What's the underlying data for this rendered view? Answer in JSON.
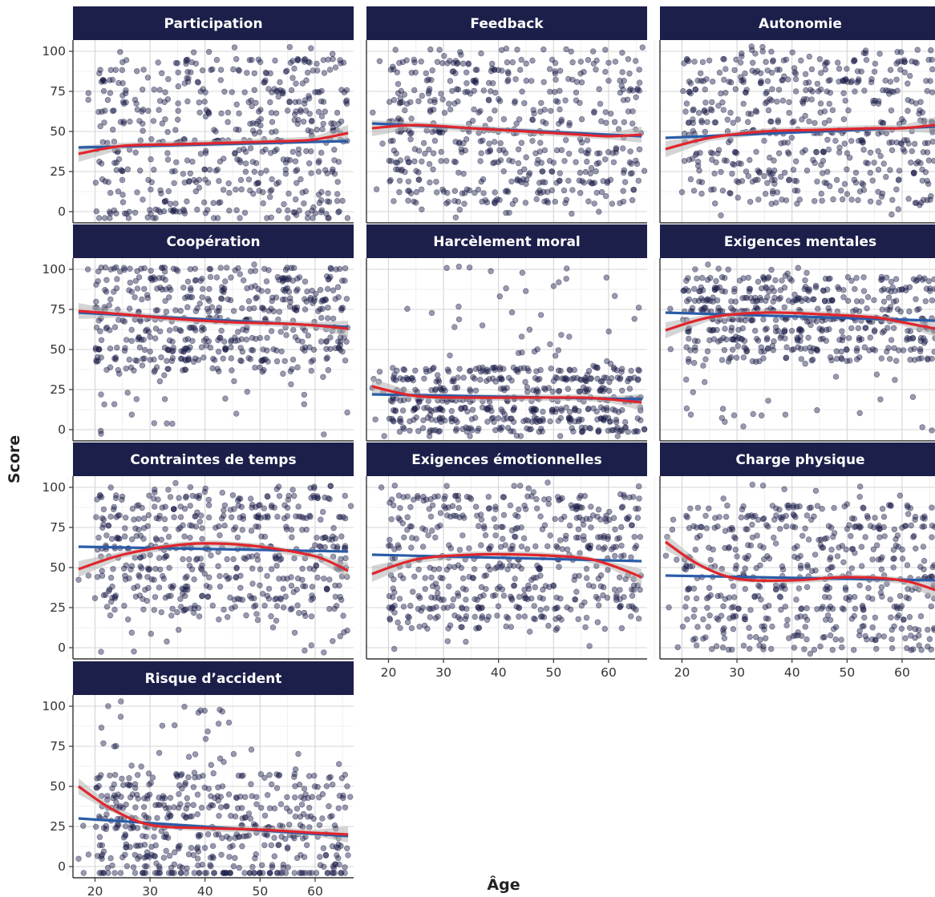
{
  "chart_data": {
    "type": "scatter",
    "xlabel": "Âge",
    "ylabel": "Score",
    "xlim": [
      16,
      67
    ],
    "ylim": [
      -7,
      107
    ],
    "x_ticks": [
      20,
      30,
      40,
      50,
      60
    ],
    "y_ticks": [
      0,
      25,
      50,
      75,
      100
    ],
    "grid": true,
    "colors": {
      "strip": "#1c1f4a",
      "points": "#1c1f4a",
      "linear": "#2a5ca8",
      "loess": "#e0262d",
      "band": "#b3b3b3"
    },
    "panels": [
      {
        "title": "Participation",
        "y_center": 45,
        "y_spread": 38,
        "linear": [
          [
            17,
            40
          ],
          [
            66,
            44
          ]
        ],
        "loess": [
          [
            17,
            36
          ],
          [
            25,
            41
          ],
          [
            35,
            42
          ],
          [
            45,
            43
          ],
          [
            55,
            44
          ],
          [
            60,
            45
          ],
          [
            66,
            49
          ]
        ]
      },
      {
        "title": "Feedback",
        "y_center": 50,
        "y_spread": 36,
        "linear": [
          [
            17,
            55
          ],
          [
            66,
            47
          ]
        ],
        "loess": [
          [
            17,
            52
          ],
          [
            25,
            54
          ],
          [
            35,
            52
          ],
          [
            45,
            50
          ],
          [
            55,
            48
          ],
          [
            60,
            47
          ],
          [
            66,
            48
          ]
        ]
      },
      {
        "title": "Autonomie",
        "y_center": 52,
        "y_spread": 36,
        "linear": [
          [
            17,
            46
          ],
          [
            66,
            53
          ]
        ],
        "loess": [
          [
            17,
            39
          ],
          [
            25,
            46
          ],
          [
            35,
            50
          ],
          [
            45,
            51
          ],
          [
            55,
            52
          ],
          [
            60,
            52
          ],
          [
            66,
            54
          ]
        ]
      },
      {
        "title": "Coopération",
        "y_center": 70,
        "y_spread": 24,
        "linear": [
          [
            17,
            73
          ],
          [
            66,
            64
          ]
        ],
        "loess": [
          [
            17,
            74
          ],
          [
            25,
            72
          ],
          [
            35,
            69
          ],
          [
            45,
            67
          ],
          [
            55,
            66
          ],
          [
            60,
            65
          ],
          [
            66,
            63
          ]
        ]
      },
      {
        "title": "Harcèlement moral",
        "y_center": 18,
        "y_spread": 16,
        "linear": [
          [
            17,
            22
          ],
          [
            66,
            19
          ]
        ],
        "loess": [
          [
            17,
            27
          ],
          [
            25,
            21
          ],
          [
            35,
            20
          ],
          [
            45,
            20
          ],
          [
            55,
            20
          ],
          [
            60,
            19
          ],
          [
            66,
            17
          ]
        ]
      },
      {
        "title": "Exigences mentales",
        "y_center": 70,
        "y_spread": 20,
        "linear": [
          [
            17,
            73
          ],
          [
            66,
            68
          ]
        ],
        "loess": [
          [
            17,
            62
          ],
          [
            25,
            70
          ],
          [
            35,
            73
          ],
          [
            45,
            72
          ],
          [
            55,
            70
          ],
          [
            60,
            67
          ],
          [
            66,
            63
          ]
        ]
      },
      {
        "title": "Contraintes de temps",
        "y_center": 60,
        "y_spread": 30,
        "linear": [
          [
            17,
            63
          ],
          [
            66,
            60
          ]
        ],
        "loess": [
          [
            17,
            49
          ],
          [
            25,
            58
          ],
          [
            35,
            64
          ],
          [
            42,
            65
          ],
          [
            50,
            63
          ],
          [
            60,
            57
          ],
          [
            66,
            48
          ]
        ]
      },
      {
        "title": "Exigences émotionnelles",
        "y_center": 55,
        "y_spread": 32,
        "linear": [
          [
            17,
            58
          ],
          [
            66,
            54
          ]
        ],
        "loess": [
          [
            17,
            46
          ],
          [
            25,
            55
          ],
          [
            35,
            58
          ],
          [
            45,
            58
          ],
          [
            55,
            56
          ],
          [
            60,
            52
          ],
          [
            66,
            44
          ]
        ]
      },
      {
        "title": "Charge physique",
        "y_center": 45,
        "y_spread": 34,
        "linear": [
          [
            17,
            45
          ],
          [
            66,
            42
          ]
        ],
        "loess": [
          [
            17,
            66
          ],
          [
            23,
            52
          ],
          [
            30,
            43
          ],
          [
            40,
            42
          ],
          [
            50,
            44
          ],
          [
            60,
            42
          ],
          [
            66,
            36
          ]
        ]
      },
      {
        "title": "Risque d’accident",
        "y_center": 22,
        "y_spread": 28,
        "linear": [
          [
            17,
            30
          ],
          [
            66,
            19
          ]
        ],
        "loess": [
          [
            17,
            50
          ],
          [
            23,
            36
          ],
          [
            30,
            26
          ],
          [
            40,
            24
          ],
          [
            50,
            23
          ],
          [
            60,
            21
          ],
          [
            66,
            20
          ]
        ]
      }
    ]
  }
}
